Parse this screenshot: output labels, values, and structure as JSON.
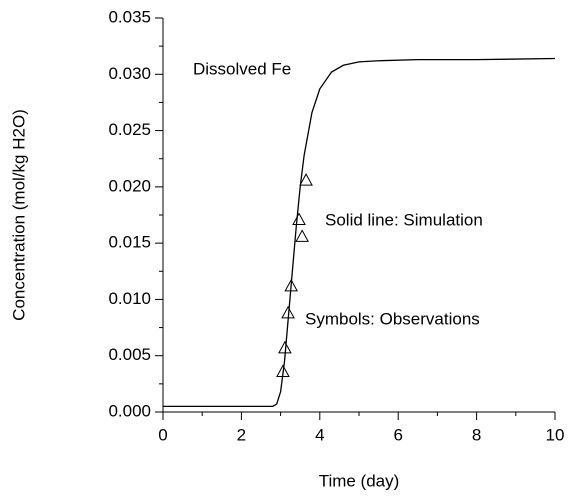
{
  "chart_data": {
    "type": "line",
    "x_label": "Time (day)",
    "y_label": "Concentration (mol/kg H2O)",
    "annotations": [
      "Dissolved Fe",
      "Solid line: Simulation",
      "Symbols: Observations"
    ],
    "xlim": [
      0,
      10
    ],
    "xticks": [
      0,
      2,
      4,
      6,
      8,
      10
    ],
    "ylim": [
      0,
      0.035
    ],
    "yticks": [
      {
        "value": 0,
        "label": "0.000"
      },
      0.005,
      {
        "value": 0.01,
        "label": "0.010"
      },
      0.015,
      {
        "value": 0.02,
        "label": "0.020"
      },
      0.025,
      {
        "value": 0.03,
        "label": "0.030"
      },
      0.035
    ],
    "series": [
      {
        "type": "line",
        "color": "#000000",
        "x": [
          0,
          2.8,
          2.9,
          3.0,
          3.1,
          3.2,
          3.3,
          3.4,
          3.5,
          3.6,
          3.8,
          4.0,
          4.3,
          4.6,
          5.0,
          5.5,
          6.5,
          8,
          10
        ],
        "values": [
          0.0005,
          0.0005,
          0.0007,
          0.0018,
          0.0045,
          0.0085,
          0.0125,
          0.0165,
          0.02,
          0.0228,
          0.0266,
          0.0287,
          0.0302,
          0.0308,
          0.0311,
          0.0312,
          0.0313,
          0.0313,
          0.0314
        ]
      },
      {
        "type": "scatter",
        "marker": "triangle",
        "color": "#000000",
        "x": [
          3.06,
          3.11,
          3.19,
          3.27,
          3.47,
          3.55,
          3.65
        ],
        "values": [
          0.0036,
          0.0057,
          0.0088,
          0.0112,
          0.0171,
          0.0156,
          0.0206
        ]
      }
    ]
  }
}
